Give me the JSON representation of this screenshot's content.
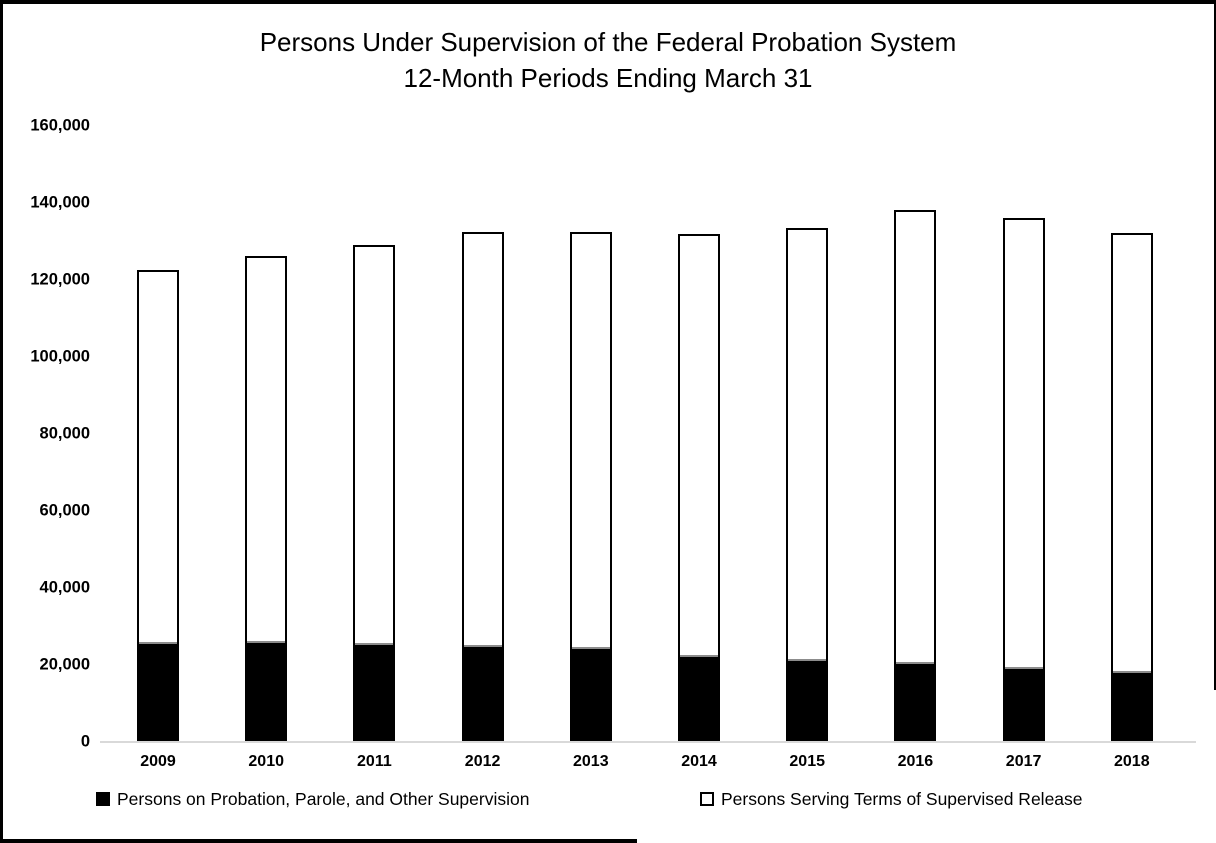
{
  "window": {
    "background": "#ffffff",
    "frame_color": "#000000"
  },
  "chart_data": {
    "type": "bar",
    "stacked": true,
    "title": [
      "Persons Under Supervision of the Federal Probation System",
      "12-Month Periods Ending March 31"
    ],
    "categories": [
      "2009",
      "2010",
      "2011",
      "2012",
      "2013",
      "2014",
      "2015",
      "2016",
      "2017",
      "2018"
    ],
    "series": [
      {
        "name": "Persons on Probation, Parole, and Other Supervision",
        "fill": "#000000",
        "values": [
          25400,
          25600,
          25200,
          24700,
          24200,
          22100,
          21000,
          20300,
          19000,
          17900
        ]
      },
      {
        "name": "Persons Serving Terms of Supervised Release",
        "fill": "#ffffff",
        "values": [
          97200,
          100600,
          103900,
          107800,
          108300,
          109800,
          112500,
          117900,
          117100,
          114300
        ]
      }
    ],
    "totals": [
      122600,
      126200,
      129100,
      132500,
      132500,
      131900,
      133500,
      138200,
      136100,
      132200
    ],
    "xlabel": "",
    "ylabel": "",
    "ylim": [
      0,
      160000
    ],
    "ytick_step": 20000,
    "ytick_labels": [
      "0",
      "20,000",
      "40,000",
      "60,000",
      "80,000",
      "100,000",
      "120,000",
      "140,000",
      "160,000"
    ],
    "grid": false,
    "legend_position": "bottom",
    "axis_line_color": "#d9d9d9",
    "bar_border_color": "#000000",
    "segment_divider_color": "#8c8c8c"
  }
}
